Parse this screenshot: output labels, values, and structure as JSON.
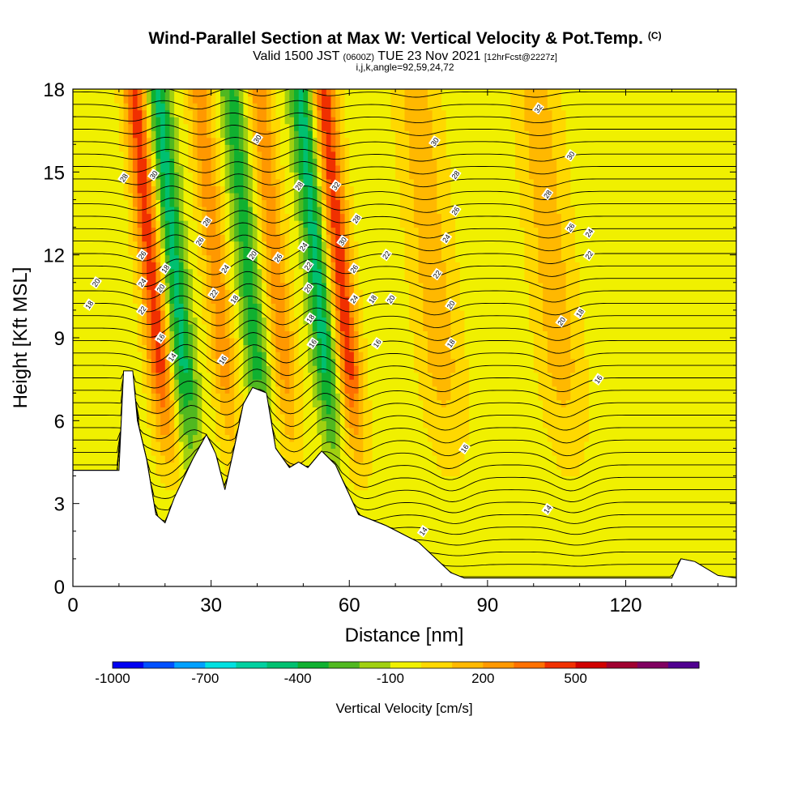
{
  "header": {
    "title": "Wind-Parallel Section at Max W: Vertical Velocity & Pot.Temp.",
    "copyright": "(C)",
    "valid_prefix": "Valid 1500 JST",
    "valid_z": "(0600Z)",
    "valid_date": "TUE 23 Nov 2021",
    "forecast": "[12hrFcst@2227z]",
    "indices": "i,j,k,angle=92,59,24,72"
  },
  "chart_data": {
    "type": "heatmap",
    "xlabel": "Distance [nm]",
    "ylabel": "Height [Kft MSL]",
    "xlim": [
      0,
      144
    ],
    "ylim": [
      0,
      18
    ],
    "x_ticks": [
      0,
      30,
      60,
      90,
      120
    ],
    "y_ticks": [
      0,
      3,
      6,
      9,
      12,
      15,
      18
    ],
    "grid": false,
    "colorbar": {
      "label": "Vertical Velocity [cm/s]",
      "placement": "bottom",
      "tick_labels": [
        "-1000",
        "-700",
        "-400",
        "-100",
        "200",
        "500"
      ],
      "tick_values": [
        -1000,
        -700,
        -400,
        -100,
        200,
        500
      ],
      "colors": [
        "#0000f0",
        "#0050ff",
        "#00a0ff",
        "#00e0e0",
        "#00d0a0",
        "#00c070",
        "#10b030",
        "#50b820",
        "#a0d010",
        "#f0f000",
        "#ffd800",
        "#ffb800",
        "#ff9800",
        "#ff7000",
        "#f03000",
        "#d00000",
        "#a00030",
        "#800060",
        "#500090"
      ]
    },
    "terrain_kft": [
      [
        0,
        4.2
      ],
      [
        10,
        4.2
      ],
      [
        11,
        7.8
      ],
      [
        13,
        7.8
      ],
      [
        14,
        6.0
      ],
      [
        16,
        4.6
      ],
      [
        18,
        2.6
      ],
      [
        20,
        2.3
      ],
      [
        22,
        3.2
      ],
      [
        26,
        4.6
      ],
      [
        29,
        5.5
      ],
      [
        31,
        4.8
      ],
      [
        33,
        3.5
      ],
      [
        35,
        5.0
      ],
      [
        37,
        6.6
      ],
      [
        39,
        7.2
      ],
      [
        42,
        7.0
      ],
      [
        44,
        5.0
      ],
      [
        47,
        4.3
      ],
      [
        49,
        4.5
      ],
      [
        51,
        4.3
      ],
      [
        54,
        4.9
      ],
      [
        57,
        4.4
      ],
      [
        62,
        2.6
      ],
      [
        68,
        2.2
      ],
      [
        75,
        1.6
      ],
      [
        82,
        0.5
      ],
      [
        85,
        0.3
      ],
      [
        130,
        0.3
      ],
      [
        132,
        1.0
      ],
      [
        135,
        0.9
      ],
      [
        140,
        0.4
      ],
      [
        144,
        0.3
      ]
    ],
    "updraft_ridges": [
      {
        "x_base": 20,
        "sign": "positive",
        "peak_cms": 500
      },
      {
        "x_base": 25,
        "sign": "negative",
        "peak_cms": -400
      },
      {
        "x_base": 34,
        "sign": "positive",
        "peak_cms": 300
      },
      {
        "x_base": 41,
        "sign": "negative",
        "peak_cms": -300
      },
      {
        "x_base": 47,
        "sign": "positive",
        "peak_cms": 300
      },
      {
        "x_base": 56,
        "sign": "negative",
        "peak_cms": -400
      },
      {
        "x_base": 61,
        "sign": "positive",
        "peak_cms": 500
      },
      {
        "x_base": 81,
        "sign": "positive",
        "peak_cms": 200
      },
      {
        "x_base": 107,
        "sign": "positive",
        "peak_cms": 200
      }
    ],
    "contour_labels": [
      {
        "x": 11,
        "y": 14.8,
        "text": "28"
      },
      {
        "x": 17.5,
        "y": 14.9,
        "text": "30"
      },
      {
        "x": 5,
        "y": 11.0,
        "text": "20"
      },
      {
        "x": 3.5,
        "y": 10.2,
        "text": "18"
      },
      {
        "x": 15,
        "y": 12.0,
        "text": "26"
      },
      {
        "x": 15,
        "y": 11.0,
        "text": "24"
      },
      {
        "x": 15,
        "y": 10.0,
        "text": "22"
      },
      {
        "x": 20,
        "y": 11.5,
        "text": "18"
      },
      {
        "x": 19,
        "y": 10.8,
        "text": "20"
      },
      {
        "x": 19,
        "y": 9.0,
        "text": "16"
      },
      {
        "x": 21.5,
        "y": 8.3,
        "text": "14"
      },
      {
        "x": 29,
        "y": 13.2,
        "text": "28"
      },
      {
        "x": 27.5,
        "y": 12.5,
        "text": "26"
      },
      {
        "x": 33,
        "y": 11.5,
        "text": "24"
      },
      {
        "x": 30.5,
        "y": 10.6,
        "text": "22"
      },
      {
        "x": 35,
        "y": 10.4,
        "text": "18"
      },
      {
        "x": 32.5,
        "y": 8.2,
        "text": "16"
      },
      {
        "x": 40,
        "y": 16.2,
        "text": "30"
      },
      {
        "x": 39,
        "y": 12.0,
        "text": "20"
      },
      {
        "x": 44.5,
        "y": 11.9,
        "text": "26"
      },
      {
        "x": 49,
        "y": 14.5,
        "text": "28"
      },
      {
        "x": 50,
        "y": 12.3,
        "text": "24"
      },
      {
        "x": 51,
        "y": 11.6,
        "text": "22"
      },
      {
        "x": 51,
        "y": 10.8,
        "text": "20"
      },
      {
        "x": 51.5,
        "y": 9.7,
        "text": "18"
      },
      {
        "x": 52,
        "y": 8.8,
        "text": "16"
      },
      {
        "x": 57,
        "y": 14.5,
        "text": "32"
      },
      {
        "x": 58.5,
        "y": 12.5,
        "text": "30"
      },
      {
        "x": 61.5,
        "y": 13.3,
        "text": "28"
      },
      {
        "x": 61,
        "y": 11.5,
        "text": "26"
      },
      {
        "x": 61,
        "y": 10.4,
        "text": "24"
      },
      {
        "x": 65,
        "y": 10.4,
        "text": "18"
      },
      {
        "x": 66,
        "y": 8.8,
        "text": "16"
      },
      {
        "x": 68,
        "y": 12.0,
        "text": "22"
      },
      {
        "x": 69,
        "y": 10.4,
        "text": "20"
      },
      {
        "x": 78.5,
        "y": 16.1,
        "text": "30"
      },
      {
        "x": 83,
        "y": 14.9,
        "text": "28"
      },
      {
        "x": 83,
        "y": 13.6,
        "text": "26"
      },
      {
        "x": 81,
        "y": 12.6,
        "text": "24"
      },
      {
        "x": 79,
        "y": 11.3,
        "text": "22"
      },
      {
        "x": 82,
        "y": 10.2,
        "text": "20"
      },
      {
        "x": 82,
        "y": 8.8,
        "text": "18"
      },
      {
        "x": 85,
        "y": 5.0,
        "text": "16"
      },
      {
        "x": 76,
        "y": 2.0,
        "text": "14"
      },
      {
        "x": 101,
        "y": 17.3,
        "text": "32"
      },
      {
        "x": 108,
        "y": 15.6,
        "text": "30"
      },
      {
        "x": 103,
        "y": 14.2,
        "text": "28"
      },
      {
        "x": 108,
        "y": 13.0,
        "text": "26"
      },
      {
        "x": 112,
        "y": 12.8,
        "text": "24"
      },
      {
        "x": 112,
        "y": 12.0,
        "text": "22"
      },
      {
        "x": 106,
        "y": 9.6,
        "text": "20"
      },
      {
        "x": 110,
        "y": 9.9,
        "text": "18"
      },
      {
        "x": 114,
        "y": 7.5,
        "text": "16"
      },
      {
        "x": 103,
        "y": 2.8,
        "text": "14"
      }
    ]
  }
}
